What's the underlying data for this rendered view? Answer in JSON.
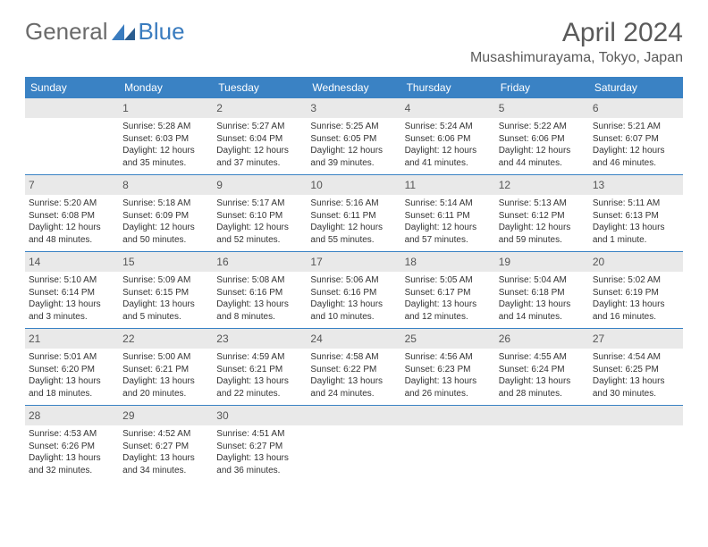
{
  "brand": {
    "general": "General",
    "blue": "Blue"
  },
  "title": "April 2024",
  "location": "Musashimurayama, Tokyo, Japan",
  "colors": {
    "header_bg": "#3a82c4",
    "daynum_bg": "#e9e9e9",
    "brand_gray": "#6b6b6b",
    "brand_blue": "#3a7cbf"
  },
  "dayHeaders": [
    "Sunday",
    "Monday",
    "Tuesday",
    "Wednesday",
    "Thursday",
    "Friday",
    "Saturday"
  ],
  "weeks": [
    [
      {
        "day": "",
        "lines": [
          "",
          "",
          "",
          ""
        ]
      },
      {
        "day": "1",
        "lines": [
          "Sunrise: 5:28 AM",
          "Sunset: 6:03 PM",
          "Daylight: 12 hours",
          "and 35 minutes."
        ]
      },
      {
        "day": "2",
        "lines": [
          "Sunrise: 5:27 AM",
          "Sunset: 6:04 PM",
          "Daylight: 12 hours",
          "and 37 minutes."
        ]
      },
      {
        "day": "3",
        "lines": [
          "Sunrise: 5:25 AM",
          "Sunset: 6:05 PM",
          "Daylight: 12 hours",
          "and 39 minutes."
        ]
      },
      {
        "day": "4",
        "lines": [
          "Sunrise: 5:24 AM",
          "Sunset: 6:06 PM",
          "Daylight: 12 hours",
          "and 41 minutes."
        ]
      },
      {
        "day": "5",
        "lines": [
          "Sunrise: 5:22 AM",
          "Sunset: 6:06 PM",
          "Daylight: 12 hours",
          "and 44 minutes."
        ]
      },
      {
        "day": "6",
        "lines": [
          "Sunrise: 5:21 AM",
          "Sunset: 6:07 PM",
          "Daylight: 12 hours",
          "and 46 minutes."
        ]
      }
    ],
    [
      {
        "day": "7",
        "lines": [
          "Sunrise: 5:20 AM",
          "Sunset: 6:08 PM",
          "Daylight: 12 hours",
          "and 48 minutes."
        ]
      },
      {
        "day": "8",
        "lines": [
          "Sunrise: 5:18 AM",
          "Sunset: 6:09 PM",
          "Daylight: 12 hours",
          "and 50 minutes."
        ]
      },
      {
        "day": "9",
        "lines": [
          "Sunrise: 5:17 AM",
          "Sunset: 6:10 PM",
          "Daylight: 12 hours",
          "and 52 minutes."
        ]
      },
      {
        "day": "10",
        "lines": [
          "Sunrise: 5:16 AM",
          "Sunset: 6:11 PM",
          "Daylight: 12 hours",
          "and 55 minutes."
        ]
      },
      {
        "day": "11",
        "lines": [
          "Sunrise: 5:14 AM",
          "Sunset: 6:11 PM",
          "Daylight: 12 hours",
          "and 57 minutes."
        ]
      },
      {
        "day": "12",
        "lines": [
          "Sunrise: 5:13 AM",
          "Sunset: 6:12 PM",
          "Daylight: 12 hours",
          "and 59 minutes."
        ]
      },
      {
        "day": "13",
        "lines": [
          "Sunrise: 5:11 AM",
          "Sunset: 6:13 PM",
          "Daylight: 13 hours",
          "and 1 minute."
        ]
      }
    ],
    [
      {
        "day": "14",
        "lines": [
          "Sunrise: 5:10 AM",
          "Sunset: 6:14 PM",
          "Daylight: 13 hours",
          "and 3 minutes."
        ]
      },
      {
        "day": "15",
        "lines": [
          "Sunrise: 5:09 AM",
          "Sunset: 6:15 PM",
          "Daylight: 13 hours",
          "and 5 minutes."
        ]
      },
      {
        "day": "16",
        "lines": [
          "Sunrise: 5:08 AM",
          "Sunset: 6:16 PM",
          "Daylight: 13 hours",
          "and 8 minutes."
        ]
      },
      {
        "day": "17",
        "lines": [
          "Sunrise: 5:06 AM",
          "Sunset: 6:16 PM",
          "Daylight: 13 hours",
          "and 10 minutes."
        ]
      },
      {
        "day": "18",
        "lines": [
          "Sunrise: 5:05 AM",
          "Sunset: 6:17 PM",
          "Daylight: 13 hours",
          "and 12 minutes."
        ]
      },
      {
        "day": "19",
        "lines": [
          "Sunrise: 5:04 AM",
          "Sunset: 6:18 PM",
          "Daylight: 13 hours",
          "and 14 minutes."
        ]
      },
      {
        "day": "20",
        "lines": [
          "Sunrise: 5:02 AM",
          "Sunset: 6:19 PM",
          "Daylight: 13 hours",
          "and 16 minutes."
        ]
      }
    ],
    [
      {
        "day": "21",
        "lines": [
          "Sunrise: 5:01 AM",
          "Sunset: 6:20 PM",
          "Daylight: 13 hours",
          "and 18 minutes."
        ]
      },
      {
        "day": "22",
        "lines": [
          "Sunrise: 5:00 AM",
          "Sunset: 6:21 PM",
          "Daylight: 13 hours",
          "and 20 minutes."
        ]
      },
      {
        "day": "23",
        "lines": [
          "Sunrise: 4:59 AM",
          "Sunset: 6:21 PM",
          "Daylight: 13 hours",
          "and 22 minutes."
        ]
      },
      {
        "day": "24",
        "lines": [
          "Sunrise: 4:58 AM",
          "Sunset: 6:22 PM",
          "Daylight: 13 hours",
          "and 24 minutes."
        ]
      },
      {
        "day": "25",
        "lines": [
          "Sunrise: 4:56 AM",
          "Sunset: 6:23 PM",
          "Daylight: 13 hours",
          "and 26 minutes."
        ]
      },
      {
        "day": "26",
        "lines": [
          "Sunrise: 4:55 AM",
          "Sunset: 6:24 PM",
          "Daylight: 13 hours",
          "and 28 minutes."
        ]
      },
      {
        "day": "27",
        "lines": [
          "Sunrise: 4:54 AM",
          "Sunset: 6:25 PM",
          "Daylight: 13 hours",
          "and 30 minutes."
        ]
      }
    ],
    [
      {
        "day": "28",
        "lines": [
          "Sunrise: 4:53 AM",
          "Sunset: 6:26 PM",
          "Daylight: 13 hours",
          "and 32 minutes."
        ]
      },
      {
        "day": "29",
        "lines": [
          "Sunrise: 4:52 AM",
          "Sunset: 6:27 PM",
          "Daylight: 13 hours",
          "and 34 minutes."
        ]
      },
      {
        "day": "30",
        "lines": [
          "Sunrise: 4:51 AM",
          "Sunset: 6:27 PM",
          "Daylight: 13 hours",
          "and 36 minutes."
        ]
      },
      {
        "day": "",
        "lines": [
          "",
          "",
          "",
          ""
        ]
      },
      {
        "day": "",
        "lines": [
          "",
          "",
          "",
          ""
        ]
      },
      {
        "day": "",
        "lines": [
          "",
          "",
          "",
          ""
        ]
      },
      {
        "day": "",
        "lines": [
          "",
          "",
          "",
          ""
        ]
      }
    ]
  ]
}
